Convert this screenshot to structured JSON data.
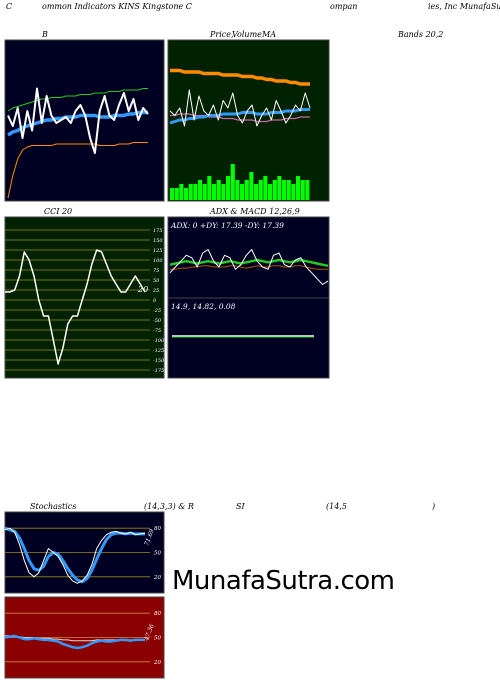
{
  "header": {
    "left": "C",
    "mid1": "ommon  Indicators KINS Kingstone  C",
    "mid2": "ompan",
    "right": "ies, Inc MunafaSutra"
  },
  "panel_titles": {
    "bbands_left": "B",
    "price_ma": "Price,",
    "volume": "Volume",
    "ma": "MA",
    "bbands_right": "Bands 20,2",
    "cci": "CCI 20",
    "adx_macd": "ADX  & MACD 12,26,9",
    "stoch_left": "Stochastics",
    "stoch_mid": "(14,3,3) & R",
    "rsi_si": "SI",
    "rsi_params": "(14,5",
    "rsi_close": ")"
  },
  "readouts": {
    "cci_value": "20",
    "adx_line": "ADX: 0  +DY: 17.39 -DY: 17.39",
    "macd_line": "14.9,  14.82,  0.08",
    "stoch_value": "71.69",
    "rsi_value": "47.36"
  },
  "watermark": "MunafaSutra.com",
  "colors": {
    "dark_bg": "#000022",
    "green_bg": "#002200",
    "red_bg": "#8b0000",
    "white_line": "#ffffff",
    "blue_line": "#3399ff",
    "orange_line": "#ff8c00",
    "green_line": "#22cc22",
    "volume_bar": "#00ff00"
  },
  "chart_data": [
    {
      "type": "line",
      "panel": "Bollinger Bands 20,2",
      "x": [
        1,
        2,
        3,
        4,
        5,
        6,
        7,
        8,
        9,
        10,
        11,
        12,
        13,
        14,
        15,
        16,
        17,
        18,
        19,
        20,
        21,
        22,
        23,
        24,
        25,
        26,
        27,
        28,
        29,
        30
      ],
      "series": [
        {
          "values": [
            55,
            48,
            60,
            40,
            58,
            45,
            73,
            50,
            68,
            55,
            50,
            52,
            54,
            50,
            58,
            62,
            55,
            40,
            30,
            58,
            68,
            55,
            52,
            62,
            70,
            58,
            66,
            52,
            60,
            56
          ]
        },
        {
          "values": [
            42,
            44,
            45,
            47,
            48,
            49,
            50,
            51,
            52,
            52,
            53,
            53,
            54,
            54,
            54,
            55,
            55,
            55,
            55,
            54,
            54,
            54,
            55,
            55,
            55,
            56,
            56,
            57,
            57,
            57
          ]
        },
        {
          "values": [
            58,
            60,
            61,
            62,
            63,
            64,
            65,
            66,
            66,
            67,
            67,
            67,
            68,
            68,
            68,
            69,
            69,
            69,
            70,
            70,
            70,
            71,
            71,
            71,
            72,
            72,
            72,
            72,
            73,
            73
          ]
        },
        {
          "values": [
            0,
            15,
            26,
            32,
            34,
            35,
            35,
            35,
            35,
            35,
            36,
            36,
            36,
            36,
            36,
            36,
            36,
            36,
            36,
            35,
            35,
            35,
            35,
            36,
            36,
            36,
            37,
            37,
            37,
            37
          ]
        }
      ]
    },
    {
      "type": "line",
      "panel": "Price, Volume, MA",
      "x": [
        1,
        2,
        3,
        4,
        5,
        6,
        7,
        8,
        9,
        10,
        11,
        12,
        13,
        14,
        15,
        16,
        17,
        18,
        19,
        20,
        21,
        22,
        23,
        24,
        25,
        26,
        27,
        28,
        29,
        30
      ],
      "series": [
        {
          "values": [
            58,
            55,
            60,
            48,
            72,
            52,
            68,
            58,
            55,
            62,
            52,
            65,
            60,
            70,
            55,
            50,
            58,
            62,
            48,
            55,
            60,
            52,
            65,
            58,
            50,
            55,
            62,
            58,
            70,
            60
          ]
        },
        {
          "values": [
            50,
            51,
            52,
            52,
            53,
            53,
            54,
            54,
            55,
            55,
            55,
            56,
            56,
            56,
            56,
            57,
            57,
            57,
            56,
            56,
            56,
            57,
            57,
            57,
            58,
            58,
            58,
            59,
            59,
            59
          ]
        },
        {
          "values": [
            85,
            85,
            85,
            84,
            84,
            84,
            84,
            83,
            83,
            83,
            83,
            82,
            82,
            82,
            82,
            81,
            81,
            81,
            80,
            80,
            79,
            79,
            78,
            78,
            78,
            77,
            77,
            76,
            76,
            76
          ]
        },
        {
          "values": [
            55,
            55,
            56,
            56,
            56,
            55,
            55,
            55,
            54,
            54,
            54,
            53,
            53,
            53,
            52,
            52,
            52,
            52,
            51,
            51,
            51,
            52,
            52,
            52,
            53,
            53,
            53,
            54,
            54,
            54
          ]
        }
      ],
      "volume": [
        3,
        3,
        4,
        3,
        4,
        4,
        5,
        4,
        6,
        4,
        5,
        4,
        6,
        9,
        5,
        4,
        5,
        7,
        4,
        5,
        6,
        4,
        5,
        6,
        5,
        5,
        4,
        6,
        5,
        5
      ]
    },
    {
      "type": "line",
      "panel": "CCI 20",
      "x": [
        1,
        2,
        3,
        4,
        5,
        6,
        7,
        8,
        9,
        10,
        11,
        12,
        13,
        14,
        15,
        16,
        17,
        18,
        19,
        20,
        21,
        22,
        23,
        24,
        25,
        26,
        27,
        28,
        29,
        30
      ],
      "series": [
        {
          "values": [
            20,
            20,
            25,
            60,
            120,
            100,
            60,
            0,
            -40,
            -40,
            -100,
            -160,
            -120,
            -60,
            -40,
            -40,
            0,
            40,
            90,
            125,
            120,
            90,
            60,
            40,
            20,
            20,
            40,
            60,
            40,
            20
          ]
        }
      ],
      "ylim": [
        -175,
        175
      ],
      "yticks": [
        175,
        150,
        125,
        100,
        75,
        50,
        25,
        0,
        -25,
        -50,
        -75,
        -100,
        -125,
        -150,
        -175
      ]
    },
    {
      "type": "line",
      "panel": "ADX & MACD 12,26,9",
      "x": [
        1,
        2,
        3,
        4,
        5,
        6,
        7,
        8,
        9,
        10,
        11,
        12,
        13,
        14,
        15,
        16,
        17,
        18,
        19,
        20,
        21,
        22,
        23,
        24,
        25,
        26,
        27,
        28,
        29,
        30
      ],
      "series": [
        {
          "values": [
            25,
            30,
            35,
            40,
            38,
            30,
            42,
            45,
            35,
            30,
            40,
            38,
            28,
            32,
            40,
            45,
            35,
            30,
            28,
            40,
            42,
            32,
            30,
            36,
            38,
            30,
            25,
            20,
            15,
            18
          ]
        },
        {
          "values": [
            32,
            33,
            34,
            35,
            34,
            33,
            34,
            35,
            34,
            33,
            34,
            35,
            34,
            33,
            34,
            35,
            36,
            35,
            34,
            35,
            36,
            35,
            34,
            35,
            36,
            35,
            34,
            33,
            32,
            31
          ]
        },
        {
          "values": [
            28,
            28,
            29,
            29,
            30,
            30,
            31,
            31,
            30,
            30,
            30,
            31,
            31,
            30,
            29,
            30,
            31,
            30,
            30,
            31,
            31,
            30,
            30,
            31,
            31,
            30,
            29,
            28,
            28,
            28
          ]
        }
      ],
      "macd": {
        "macd": 14.9,
        "signal": 14.82,
        "histogram": 0.08
      }
    },
    {
      "type": "line",
      "panel": "Stochastics (14,3,3)",
      "x": [
        1,
        2,
        3,
        4,
        5,
        6,
        7,
        8,
        9,
        10,
        11,
        12,
        13,
        14,
        15,
        16,
        17,
        18,
        19,
        20,
        21,
        22,
        23,
        24,
        25,
        26,
        27,
        28,
        29,
        30
      ],
      "series": [
        {
          "values": [
            78,
            80,
            75,
            60,
            40,
            25,
            20,
            25,
            40,
            55,
            50,
            45,
            35,
            22,
            15,
            12,
            15,
            22,
            35,
            55,
            65,
            72,
            75,
            76,
            74,
            73,
            75,
            72,
            73,
            74
          ]
        },
        {
          "values": [
            80,
            78,
            76,
            68,
            55,
            40,
            30,
            28,
            33,
            45,
            50,
            48,
            40,
            30,
            22,
            16,
            14,
            18,
            28,
            42,
            55,
            66,
            72,
            74,
            74,
            73,
            74,
            73,
            73,
            73
          ]
        }
      ],
      "ylim": [
        0,
        100
      ],
      "yticks": [
        80,
        50,
        20
      ]
    },
    {
      "type": "line",
      "panel": "RSI (14,5)",
      "x": [
        1,
        2,
        3,
        4,
        5,
        6,
        7,
        8,
        9,
        10,
        11,
        12,
        13,
        14,
        15,
        16,
        17,
        18,
        19,
        20,
        21,
        22,
        23,
        24,
        25,
        26,
        27,
        28,
        29,
        30
      ],
      "series": [
        {
          "values": [
            50,
            51,
            52,
            50,
            48,
            48,
            49,
            48,
            47,
            47,
            46,
            45,
            42,
            40,
            38,
            37,
            38,
            40,
            43,
            45,
            46,
            45,
            45,
            46,
            47,
            47,
            46,
            47,
            47,
            47
          ]
        },
        {
          "values": [
            52,
            52,
            51,
            51,
            50,
            50,
            50,
            49,
            49,
            49,
            48,
            48,
            47,
            47,
            46,
            46,
            46,
            46,
            46,
            47,
            47,
            47,
            47,
            47,
            47,
            47,
            47,
            47,
            47,
            47
          ]
        }
      ],
      "ylim": [
        0,
        100
      ],
      "yticks": [
        80,
        50,
        20
      ]
    }
  ]
}
